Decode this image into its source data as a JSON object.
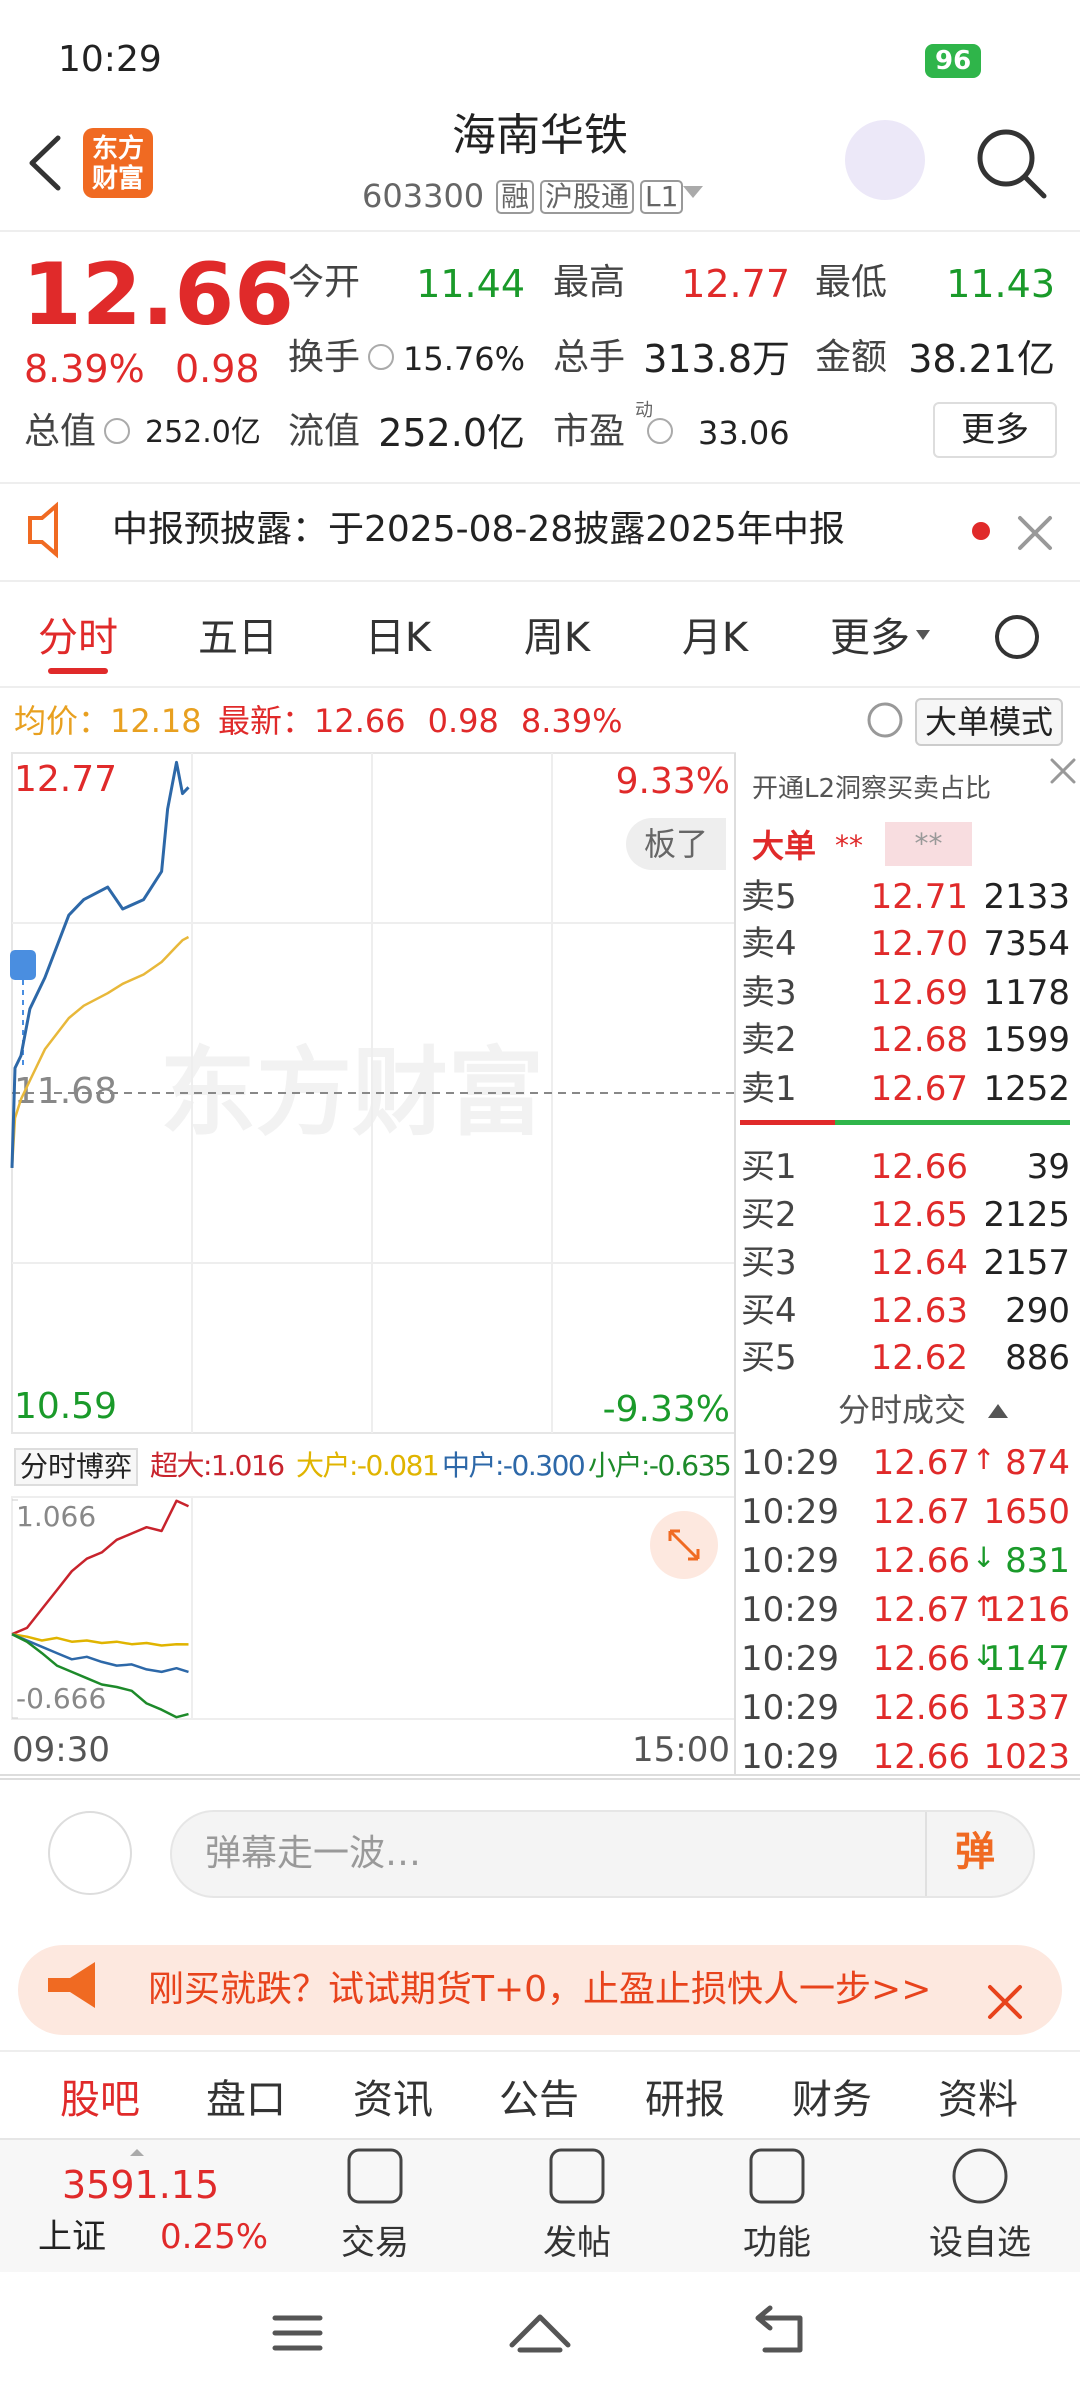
{
  "status_bar": {
    "time": "10:29",
    "battery": "96"
  },
  "header": {
    "logo": "东方财富",
    "title": "海南华铁",
    "code": "603300",
    "tags": [
      "融",
      "沪股通",
      "L1"
    ]
  },
  "quote": {
    "price": "12.66",
    "change_pct": "8.39%",
    "change": "0.98",
    "more": "更多",
    "stats": [
      {
        "label": "今开",
        "value": "11.44"
      },
      {
        "label": "最高",
        "value": "12.77"
      },
      {
        "label": "最低",
        "value": "11.43"
      },
      {
        "label": "换手",
        "value": "15.76%"
      },
      {
        "label": "总手",
        "value": "313.8万"
      },
      {
        "label": "金额",
        "value": "38.21亿"
      },
      {
        "label": "总值",
        "value": "252.0亿"
      },
      {
        "label": "流值",
        "value": "252.0亿"
      },
      {
        "label": "市盈",
        "sup": "动",
        "value": "33.06"
      }
    ]
  },
  "notice": {
    "text": "中报预披露：于2025-08-28披露2025年中报"
  },
  "tabs": [
    "分时",
    "五日",
    "日K",
    "周K",
    "月K",
    "更多"
  ],
  "info_bar": {
    "avg_label": "均价：",
    "avg": "12.18",
    "latest_label": "最新：",
    "latest": "12.66",
    "change": "0.98",
    "change_pct": "8.39%",
    "mode": "大单模式"
  },
  "price_chart": {
    "watermark": "东方财富",
    "badge": "板了",
    "xlim": [
      0,
      240
    ],
    "ylim": [
      10.59,
      12.77
    ],
    "yticks": [
      12.77,
      11.68,
      10.59
    ],
    "pct_labels": [
      "9.33%",
      "-9.33%"
    ],
    "time_labels": [
      "09:30",
      "15:00"
    ],
    "x": [
      0,
      1,
      3,
      6,
      11,
      19,
      24,
      32,
      37,
      44,
      50,
      52,
      55,
      57,
      59
    ],
    "price": [
      11.44,
      11.76,
      11.8,
      11.95,
      12.05,
      12.25,
      12.3,
      12.34,
      12.27,
      12.3,
      12.39,
      12.59,
      12.74,
      12.64,
      12.66
    ],
    "avg": [
      11.44,
      11.6,
      11.66,
      11.72,
      11.82,
      11.92,
      11.96,
      12.0,
      12.03,
      12.06,
      12.1,
      12.12,
      12.15,
      12.17,
      12.18
    ]
  },
  "flow_chart": {
    "selector": "分时博弈",
    "legend": [
      "超大:1.016",
      "大户:-0.081",
      "中户:-0.300",
      "小户:-0.635"
    ],
    "xlim": [
      0,
      240
    ],
    "ylim": [
      -0.666,
      1.066
    ],
    "yticks": [
      1.066,
      -0.666
    ],
    "x": [
      0,
      5,
      10,
      15,
      20,
      25,
      30,
      35,
      40,
      45,
      50,
      55,
      59
    ],
    "series": [
      {
        "name": "超大",
        "color": "#c8232c",
        "values": [
          0,
          0.05,
          0.2,
          0.35,
          0.5,
          0.6,
          0.65,
          0.75,
          0.8,
          0.85,
          0.82,
          1.06,
          1.016
        ]
      },
      {
        "name": "大户",
        "color": "#e0b400",
        "values": [
          0,
          -0.02,
          -0.05,
          -0.03,
          -0.06,
          -0.05,
          -0.07,
          -0.06,
          -0.08,
          -0.07,
          -0.09,
          -0.08,
          -0.081
        ]
      },
      {
        "name": "中户",
        "color": "#2d68a8",
        "values": [
          0,
          -0.05,
          -0.1,
          -0.15,
          -0.2,
          -0.18,
          -0.22,
          -0.25,
          -0.24,
          -0.28,
          -0.3,
          -0.27,
          -0.3
        ]
      },
      {
        "name": "小户",
        "color": "#1d8a2a",
        "values": [
          0,
          -0.06,
          -0.15,
          -0.25,
          -0.3,
          -0.35,
          -0.4,
          -0.42,
          -0.45,
          -0.55,
          -0.6,
          -0.66,
          -0.635
        ]
      }
    ]
  },
  "order_book": {
    "promo": "开通L2洞察买卖占比",
    "big_label": "大单",
    "masked": [
      "**",
      "**"
    ],
    "asks": [
      {
        "label": "卖5",
        "price": "12.71",
        "volume": "2133"
      },
      {
        "label": "卖4",
        "price": "12.70",
        "volume": "7354"
      },
      {
        "label": "卖3",
        "price": "12.69",
        "volume": "1178"
      },
      {
        "label": "卖2",
        "price": "12.68",
        "volume": "1599"
      },
      {
        "label": "卖1",
        "price": "12.67",
        "volume": "1252"
      }
    ],
    "bids": [
      {
        "label": "买1",
        "price": "12.66",
        "volume": "39"
      },
      {
        "label": "买2",
        "price": "12.65",
        "volume": "2125"
      },
      {
        "label": "买3",
        "price": "12.64",
        "volume": "2157"
      },
      {
        "label": "买4",
        "price": "12.63",
        "volume": "290"
      },
      {
        "label": "买5",
        "price": "12.62",
        "volume": "886"
      }
    ]
  },
  "trades": {
    "title": "分时成交",
    "rows": [
      {
        "time": "10:29",
        "price": "12.67",
        "arrow": "↑",
        "volume": "874"
      },
      {
        "time": "10:29",
        "price": "12.67",
        "volume": "1650"
      },
      {
        "time": "10:29",
        "price": "12.66",
        "arrow": "↓",
        "volume": "831"
      },
      {
        "time": "10:29",
        "price": "12.67",
        "arrow": "↑",
        "volume": "1216"
      },
      {
        "time": "10:29",
        "price": "12.66",
        "arrow": "↓",
        "volume": "1147"
      },
      {
        "time": "10:29",
        "price": "12.66",
        "volume": "1337"
      },
      {
        "time": "10:29",
        "price": "12.66",
        "volume": "1023"
      }
    ]
  },
  "comment": {
    "placeholder": "弹幕走一波…",
    "button": "弹"
  },
  "ad": {
    "text": "刚买就跌？试试期货T+0，止盈止损快人一步>>"
  },
  "bottom_tabs": [
    "股吧",
    "盘口",
    "资讯",
    "公告",
    "研报",
    "财务",
    "资料"
  ],
  "nav": {
    "index_value": "3591.15",
    "index_name": "上证",
    "index_change": "0.25%",
    "items": [
      "交易",
      "发帖",
      "功能",
      "设自选"
    ]
  }
}
